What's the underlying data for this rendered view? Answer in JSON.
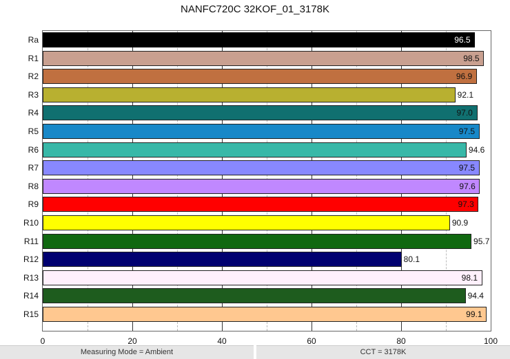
{
  "chart_data": {
    "type": "bar",
    "orientation": "horizontal",
    "title": "NANFC720C 32KOF_01_3178K",
    "xlabel": "",
    "ylabel": "",
    "xlim": [
      0,
      100
    ],
    "x_ticks": [
      0,
      20,
      40,
      60,
      80,
      100
    ],
    "grid": {
      "major_every": 20,
      "minor_every": 10,
      "minor_style": "dashed"
    },
    "legend": null,
    "categories": [
      "Ra",
      "R1",
      "R2",
      "R3",
      "R4",
      "R5",
      "R6",
      "R7",
      "R8",
      "R9",
      "R10",
      "R11",
      "R12",
      "R13",
      "R14",
      "R15"
    ],
    "values": [
      96.5,
      98.5,
      96.9,
      92.1,
      97.0,
      97.5,
      94.6,
      97.5,
      97.6,
      97.3,
      90.9,
      95.7,
      80.1,
      98.1,
      94.4,
      99.1
    ],
    "value_labels": [
      "96.5",
      "98.5",
      "96.9",
      "92.1",
      "97.0",
      "97.5",
      "94.6",
      "97.5",
      "97.6",
      "97.3",
      "90.9",
      "95.7",
      "80.1",
      "98.1",
      "94.4",
      "99.1"
    ],
    "colors": [
      "#000000",
      "#c9a090",
      "#c07040",
      "#b8b030",
      "#107070",
      "#1888c8",
      "#38b8a8",
      "#8888ff",
      "#c088ff",
      "#ff0000",
      "#ffff00",
      "#106810",
      "#000070",
      "#fff0fc",
      "#1e5c1e",
      "#ffc890"
    ],
    "label_inside": [
      true,
      true,
      true,
      false,
      true,
      true,
      false,
      true,
      true,
      true,
      false,
      false,
      false,
      true,
      false,
      true
    ],
    "label_colors": [
      "#ffffff",
      "#111111",
      "#111111",
      "#111111",
      "#111111",
      "#111111",
      "#111111",
      "#111111",
      "#111111",
      "#111111",
      "#111111",
      "#111111",
      "#111111",
      "#111111",
      "#111111",
      "#111111"
    ]
  },
  "footer": {
    "left": "Measuring Mode = Ambient",
    "right": "CCT = 3178K"
  }
}
